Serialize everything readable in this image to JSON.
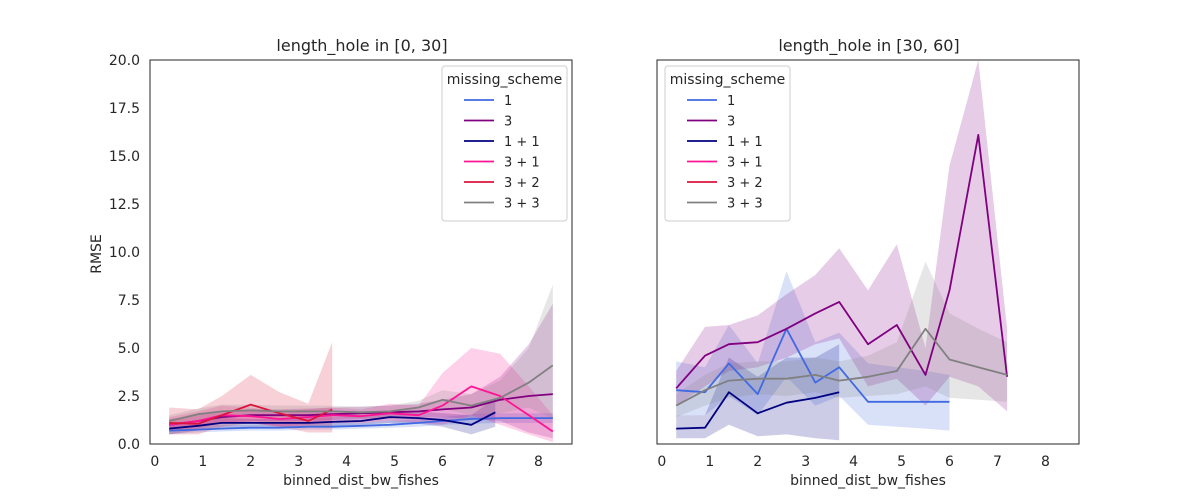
{
  "chart_data": {
    "type": "line",
    "y_axis_label": "RMSE",
    "ylim": [
      0,
      20
    ],
    "y_ticks": [
      "0.0",
      "2.5",
      "5.0",
      "7.5",
      "10.0",
      "12.5",
      "15.0",
      "17.5",
      "20.0"
    ],
    "xlim": [
      -0.1,
      8.7
    ],
    "x_ticks": [
      "0",
      "1",
      "2",
      "3",
      "4",
      "5",
      "6",
      "7",
      "8"
    ],
    "legend_title": "missing_scheme",
    "series_colors": {
      "1": "#4169e1",
      "1 + 1": "#000080",
      "3": "#800080",
      "3 + 1": "#ff1493",
      "3 + 2": "#dc143c",
      "3 + 3": "#808080"
    },
    "panels": [
      {
        "title": "length_hole in [0, 30]",
        "xlabel": "binned_dist_bw_fishes",
        "legend_position": "top-right",
        "series": [
          {
            "name": "1",
            "x": [
              0.3,
              0.9,
              1.4,
              2.0,
              2.6,
              3.2,
              3.7,
              4.3,
              4.9,
              5.5,
              6.0,
              6.6,
              7.2,
              7.8,
              8.3
            ],
            "y": [
              0.7,
              0.75,
              0.8,
              0.85,
              0.85,
              0.9,
              0.9,
              0.95,
              1.0,
              1.1,
              1.2,
              1.3,
              1.35,
              1.35,
              1.35
            ],
            "lo": [
              0.5,
              0.6,
              0.65,
              0.7,
              0.7,
              0.75,
              0.75,
              0.8,
              0.85,
              0.9,
              1.0,
              1.05,
              1.1,
              1.1,
              1.1
            ],
            "hi": [
              0.9,
              0.95,
              1.0,
              1.0,
              1.05,
              1.05,
              1.1,
              1.1,
              1.2,
              1.3,
              1.4,
              1.55,
              1.6,
              1.6,
              1.6
            ]
          },
          {
            "name": "1 + 1",
            "x": [
              0.3,
              0.9,
              1.4,
              2.0,
              2.6,
              3.2,
              3.7,
              4.3,
              4.9,
              5.5,
              6.0,
              6.6,
              7.1
            ],
            "y": [
              0.8,
              0.95,
              1.1,
              1.1,
              1.1,
              1.1,
              1.15,
              1.2,
              1.4,
              1.35,
              1.25,
              1.0,
              1.65
            ],
            "lo": [
              0.5,
              0.7,
              0.85,
              0.9,
              0.9,
              0.9,
              0.95,
              1.0,
              1.1,
              1.05,
              0.9,
              0.5,
              0.9
            ],
            "hi": [
              1.1,
              1.2,
              1.35,
              1.3,
              1.3,
              1.35,
              1.4,
              1.45,
              1.7,
              1.7,
              1.6,
              1.5,
              2.4
            ]
          },
          {
            "name": "3",
            "x": [
              0.3,
              0.9,
              1.4,
              2.0,
              2.6,
              3.2,
              3.7,
              4.3,
              4.9,
              5.5,
              6.0,
              6.6,
              7.2,
              7.8,
              8.3
            ],
            "y": [
              1.0,
              1.2,
              1.4,
              1.5,
              1.5,
              1.5,
              1.55,
              1.6,
              1.65,
              1.7,
              1.8,
              1.9,
              2.3,
              2.5,
              2.6
            ],
            "lo": [
              0.8,
              0.9,
              1.1,
              1.2,
              1.2,
              1.2,
              1.25,
              1.3,
              1.35,
              1.4,
              1.4,
              1.3,
              1.2,
              0.6,
              0.3
            ],
            "hi": [
              1.3,
              1.5,
              1.7,
              1.8,
              1.8,
              1.85,
              1.9,
              1.95,
              2.0,
              2.1,
              2.3,
              2.6,
              3.5,
              5.2,
              7.3
            ]
          },
          {
            "name": "3 + 1",
            "x": [
              0.3,
              0.9,
              1.4,
              2.0,
              2.6,
              3.2,
              3.7,
              4.3,
              4.9,
              5.5,
              6.0,
              6.6,
              7.2,
              7.8,
              8.3
            ],
            "y": [
              1.0,
              1.2,
              1.5,
              1.45,
              1.3,
              1.4,
              1.5,
              1.45,
              1.6,
              1.5,
              2.0,
              3.0,
              2.5,
              1.5,
              0.65
            ],
            "lo": [
              0.7,
              0.8,
              1.1,
              1.1,
              0.9,
              1.0,
              1.1,
              1.1,
              1.2,
              1.1,
              1.0,
              1.5,
              1.0,
              0.5,
              0.1
            ],
            "hi": [
              1.4,
              1.7,
              2.0,
              1.9,
              1.7,
              1.8,
              1.9,
              1.8,
              2.1,
              2.0,
              3.7,
              5.0,
              4.7,
              3.0,
              1.5
            ]
          },
          {
            "name": "3 + 2",
            "x": [
              0.3,
              0.9,
              1.4,
              2.0,
              2.6,
              3.2,
              3.7
            ],
            "y": [
              1.1,
              1.05,
              1.5,
              2.05,
              1.6,
              1.2,
              1.8
            ],
            "lo": [
              0.5,
              0.5,
              0.9,
              1.1,
              0.9,
              0.6,
              0.6
            ],
            "hi": [
              1.9,
              1.8,
              2.5,
              3.6,
              2.7,
              2.1,
              5.3
            ]
          },
          {
            "name": "3 + 3",
            "x": [
              0.3,
              0.9,
              1.4,
              2.0,
              2.6,
              3.2,
              3.7,
              4.3,
              4.9,
              5.5,
              6.0,
              6.6,
              7.2,
              7.8,
              8.3
            ],
            "y": [
              1.2,
              1.55,
              1.7,
              1.75,
              1.7,
              1.7,
              1.7,
              1.65,
              1.7,
              1.9,
              2.3,
              2.0,
              2.4,
              3.2,
              4.1
            ],
            "lo": [
              0.9,
              1.2,
              1.35,
              1.45,
              1.4,
              1.4,
              1.4,
              1.35,
              1.4,
              1.55,
              1.85,
              1.5,
              1.6,
              1.9,
              1.3
            ],
            "hi": [
              1.5,
              1.85,
              2.05,
              2.05,
              2.0,
              2.0,
              2.0,
              1.95,
              2.0,
              2.25,
              2.8,
              2.6,
              3.3,
              5.0,
              8.3
            ]
          }
        ]
      },
      {
        "title": "length_hole in [30, 60]",
        "xlabel": "binned_dist_bw_fishes",
        "legend_position": "top-left",
        "series": [
          {
            "name": "1",
            "x": [
              0.3,
              0.9,
              1.4,
              2.0,
              2.6,
              3.2,
              3.7,
              4.3,
              4.9,
              5.5,
              6.0
            ],
            "y": [
              2.8,
              2.7,
              4.2,
              2.6,
              6.0,
              3.2,
              4.0,
              2.2,
              2.2,
              2.2,
              2.2
            ],
            "lo": [
              1.5,
              1.5,
              2.5,
              1.5,
              3.5,
              2.0,
              2.5,
              1.0,
              0.9,
              0.8,
              0.7
            ],
            "hi": [
              4.3,
              4.0,
              6.2,
              4.2,
              9.0,
              5.3,
              5.8,
              4.2,
              4.0,
              3.8,
              3.6
            ]
          },
          {
            "name": "1 + 1",
            "x": [
              0.3,
              0.9,
              1.4,
              2.0,
              2.6,
              3.2,
              3.7
            ],
            "y": [
              0.8,
              0.85,
              2.7,
              1.6,
              2.15,
              2.4,
              2.7
            ],
            "lo": [
              0.3,
              0.3,
              1.0,
              0.4,
              0.5,
              0.3,
              0.2
            ],
            "hi": [
              1.5,
              1.5,
              4.5,
              3.5,
              4.5,
              4.5,
              5.2
            ]
          },
          {
            "name": "3",
            "x": [
              0.3,
              0.9,
              1.4,
              2.0,
              2.6,
              3.2,
              3.7,
              4.3,
              4.9,
              5.5,
              6.0,
              6.6,
              7.2
            ],
            "y": [
              2.9,
              4.6,
              5.2,
              5.3,
              6.0,
              6.8,
              7.4,
              5.2,
              6.2,
              3.6,
              8.0,
              16.1,
              3.5
            ],
            "lo": [
              2.0,
              3.0,
              3.8,
              4.0,
              4.5,
              5.2,
              5.5,
              3.0,
              3.4,
              2.0,
              3.5,
              3.0,
              1.7
            ],
            "hi": [
              3.8,
              6.1,
              6.2,
              6.7,
              7.8,
              8.8,
              10.2,
              8.0,
              10.4,
              5.0,
              14.5,
              23.0,
              6.0
            ]
          },
          {
            "name": "3 + 3",
            "x": [
              0.3,
              0.9,
              1.4,
              2.0,
              2.6,
              3.2,
              3.7,
              4.3,
              4.9,
              5.5,
              6.0,
              6.6,
              7.2
            ],
            "y": [
              2.0,
              2.8,
              3.3,
              3.4,
              3.4,
              3.6,
              3.3,
              3.5,
              3.8,
              6.0,
              4.4,
              4.0,
              3.6
            ],
            "lo": [
              1.4,
              2.0,
              2.4,
              2.6,
              2.5,
              2.7,
              2.4,
              2.5,
              2.6,
              3.0,
              2.4,
              2.3,
              2.2
            ],
            "hi": [
              2.6,
              3.6,
              4.2,
              4.3,
              4.3,
              4.5,
              4.3,
              4.6,
              5.3,
              9.5,
              6.8,
              6.0,
              5.3
            ]
          }
        ]
      }
    ]
  }
}
